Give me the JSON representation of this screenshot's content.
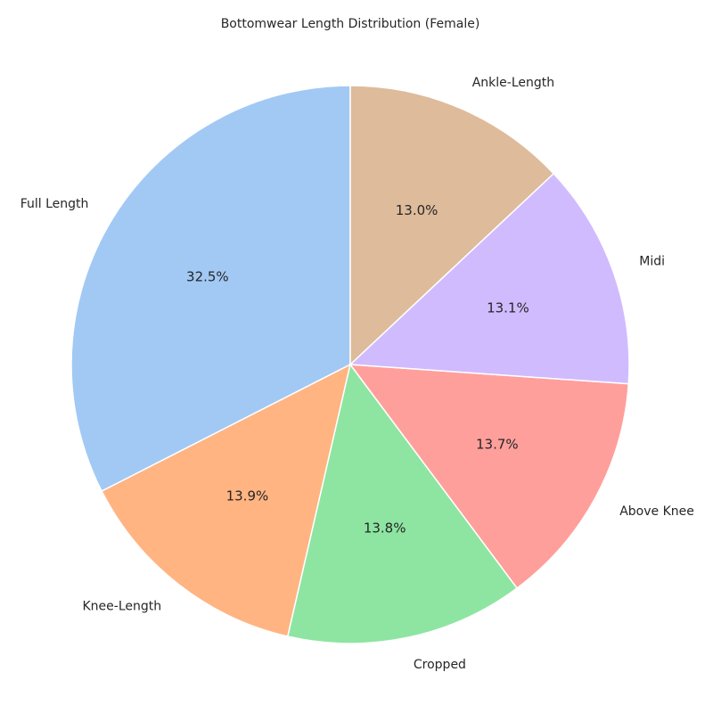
{
  "chart_data": {
    "type": "pie",
    "title": "Bottomwear Length Distribution (Female)",
    "start_angle_deg": 90,
    "direction": "counterclockwise",
    "slices": [
      {
        "label": "Full Length",
        "value": 32.5,
        "pct_label": "32.5%",
        "color": "#a1c9f4"
      },
      {
        "label": "Knee-Length",
        "value": 13.9,
        "pct_label": "13.9%",
        "color": "#ffb482"
      },
      {
        "label": "Cropped",
        "value": 13.8,
        "pct_label": "13.8%",
        "color": "#8de5a1"
      },
      {
        "label": "Above Knee",
        "value": 13.7,
        "pct_label": "13.7%",
        "color": "#ff9f9b"
      },
      {
        "label": "Midi",
        "value": 13.1,
        "pct_label": "13.1%",
        "color": "#d0bbff"
      },
      {
        "label": "Ankle-Length",
        "value": 13.0,
        "pct_label": "13.0%",
        "color": "#debb9b"
      }
    ]
  }
}
